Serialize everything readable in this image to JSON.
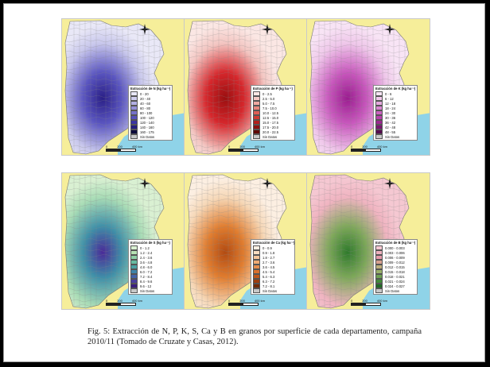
{
  "figure": {
    "caption": "Fig. 5: Extracción de N, P, K, S, Ca y B en granos por superficie de cada departamento, campaña 2010/11 (Tomado de Cruzate y Casas, 2012).",
    "compass_n": "N",
    "scale_labels": [
      "0",
      "200",
      "400 km"
    ],
    "panels": [
      {
        "legend_title": "Extracción de N (kg ha⁻¹)",
        "hot_color": "#2a1f86",
        "mid_color": "#5a55c0",
        "low_color": "#c9c8ec",
        "classes": [
          {
            "label": "0 - 20",
            "color": "#e9e8f7"
          },
          {
            "label": "20 - 40",
            "color": "#cfcdee"
          },
          {
            "label": "40 - 60",
            "color": "#b2afe3"
          },
          {
            "label": "60 - 80",
            "color": "#9590d7"
          },
          {
            "label": "80 - 100",
            "color": "#7571c9"
          },
          {
            "label": "100 - 120",
            "color": "#5651b9"
          },
          {
            "label": "120 - 140",
            "color": "#3b35a2"
          },
          {
            "label": "140 - 160",
            "color": "#241d80"
          },
          {
            "label": "160 - 175",
            "color": "#0c0a3a"
          },
          {
            "label": "Sin Datos",
            "color": "#c8c8c8"
          }
        ]
      },
      {
        "legend_title": "Extracción de P (kg ha⁻¹)",
        "hot_color": "#9a0f10",
        "mid_color": "#d6272c",
        "low_color": "#f3c6c2",
        "classes": [
          {
            "label": "0 - 2.5",
            "color": "#fbe7e4"
          },
          {
            "label": "2.5 - 5.0",
            "color": "#f5cac5"
          },
          {
            "label": "5.0 - 7.5",
            "color": "#efa9a2"
          },
          {
            "label": "7.5 - 10.0",
            "color": "#e7857c"
          },
          {
            "label": "10.0 - 12.5",
            "color": "#dd5e55"
          },
          {
            "label": "12.5 - 15.0",
            "color": "#cf3a32"
          },
          {
            "label": "15.0 - 17.5",
            "color": "#b3201b"
          },
          {
            "label": "17.5 - 20.0",
            "color": "#8c100d"
          },
          {
            "label": "20.0 - 22.5",
            "color": "#5e0806"
          },
          {
            "label": "Sin Datos",
            "color": "#c8c8c8"
          }
        ]
      },
      {
        "legend_title": "Extracción de K (kg ha⁻¹)",
        "hot_color": "#9a1d8f",
        "mid_color": "#c858bd",
        "low_color": "#efc8ea",
        "classes": [
          {
            "label": "0 - 6",
            "color": "#f8e4f5"
          },
          {
            "label": "6 - 12",
            "color": "#f1c8ec"
          },
          {
            "label": "12 - 18",
            "color": "#e6a8df"
          },
          {
            "label": "18 - 24",
            "color": "#da86d1"
          },
          {
            "label": "24 - 30",
            "color": "#cb62c0"
          },
          {
            "label": "30 - 36",
            "color": "#b842ab"
          },
          {
            "label": "36 - 42",
            "color": "#9c2890"
          },
          {
            "label": "42 - 48",
            "color": "#7a1670"
          },
          {
            "label": "48 - 55",
            "color": "#560c4e"
          },
          {
            "label": "Sin Datos",
            "color": "#c8c8c8"
          }
        ]
      },
      {
        "legend_title": "Extracción de S (kg ha⁻¹)",
        "hot_color": "#4a2a98",
        "mid_color": "#3f8fa8",
        "low_color": "#a9dcb6",
        "classes": [
          {
            "label": "0 - 1.2",
            "color": "#d9f0d2"
          },
          {
            "label": "1.2 - 2.4",
            "color": "#b6e2b3"
          },
          {
            "label": "2.4 - 3.6",
            "color": "#8fd0a6"
          },
          {
            "label": "3.6 - 4.8",
            "color": "#68bba0"
          },
          {
            "label": "4.8 - 6.0",
            "color": "#4aa2a3"
          },
          {
            "label": "6.0 - 7.2",
            "color": "#3f84a8"
          },
          {
            "label": "7.2 - 8.4",
            "color": "#4464a8"
          },
          {
            "label": "8.4 - 9.6",
            "color": "#4a3f9c"
          },
          {
            "label": "9.6 - 12",
            "color": "#3a1f7e"
          },
          {
            "label": "Sin Datos",
            "color": "#c8c8c8"
          }
        ]
      },
      {
        "legend_title": "Extracción de Ca (kg ha⁻¹)",
        "hot_color": "#b24b12",
        "mid_color": "#e07d30",
        "low_color": "#f6d8b8",
        "classes": [
          {
            "label": "0 - 0.9",
            "color": "#fcefe2"
          },
          {
            "label": "0.9 - 1.8",
            "color": "#f9dcc0"
          },
          {
            "label": "1.8 - 2.7",
            "color": "#f5c59b"
          },
          {
            "label": "2.7 - 3.6",
            "color": "#efaa73"
          },
          {
            "label": "3.6 - 4.5",
            "color": "#e68d4c"
          },
          {
            "label": "4.5 - 5.4",
            "color": "#d8702d"
          },
          {
            "label": "5.4 - 6.3",
            "color": "#bf561a"
          },
          {
            "label": "6.3 - 7.2",
            "color": "#9c3f10"
          },
          {
            "label": "7.2 - 8.1",
            "color": "#722c08"
          },
          {
            "label": "Sin Datos",
            "color": "#c8c8c8"
          }
        ]
      },
      {
        "legend_title": "Extracción de B (kg ha⁻¹)",
        "hot_color": "#2f7a2c",
        "mid_color": "#7ea85a",
        "low_color": "#f0b4c1",
        "classes": [
          {
            "label": "0.000 - 0.003",
            "color": "#f5c8d2"
          },
          {
            "label": "0.003 - 0.006",
            "color": "#eeb0bd"
          },
          {
            "label": "0.006 - 0.009",
            "color": "#e59aaa"
          },
          {
            "label": "0.009 - 0.012",
            "color": "#d8a090"
          },
          {
            "label": "0.012 - 0.015",
            "color": "#bfae7c"
          },
          {
            "label": "0.015 - 0.018",
            "color": "#99b06a"
          },
          {
            "label": "0.018 - 0.021",
            "color": "#6da152"
          },
          {
            "label": "0.021 - 0.024",
            "color": "#428a3a"
          },
          {
            "label": "0.024 - 0.027",
            "color": "#226a26"
          },
          {
            "label": "Sin Datos",
            "color": "#c8c8c8"
          }
        ]
      }
    ]
  }
}
